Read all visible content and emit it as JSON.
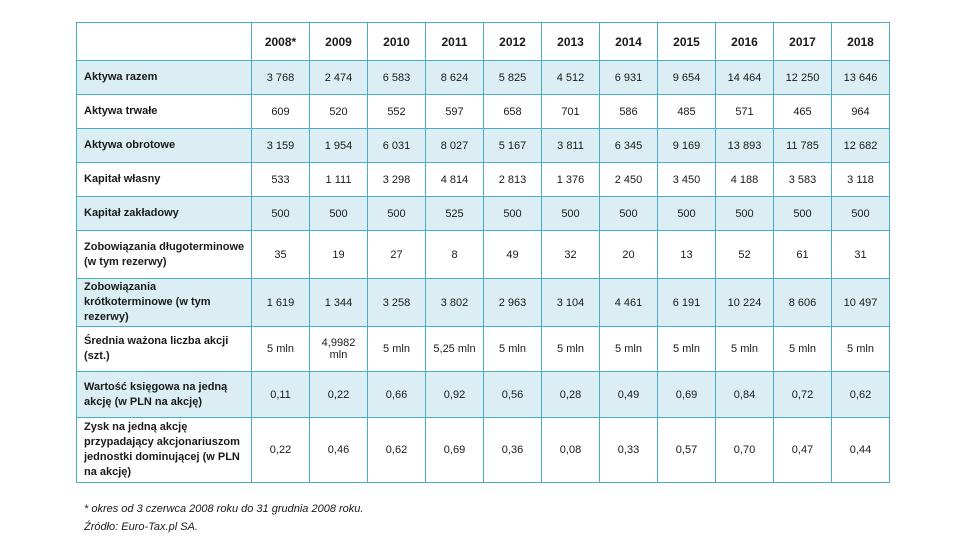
{
  "years": [
    "2008*",
    "2009",
    "2010",
    "2011",
    "2012",
    "2013",
    "2014",
    "2015",
    "2016",
    "2017",
    "2018"
  ],
  "rows": [
    {
      "label": "Aktywa razem",
      "values": [
        "3 768",
        "2 474",
        "6 583",
        "8 624",
        "5 825",
        "4 512",
        "6 931",
        "9 654",
        "14 464",
        "12 250",
        "13 646"
      ]
    },
    {
      "label": "Aktywa trwałe",
      "values": [
        "609",
        "520",
        "552",
        "597",
        "658",
        "701",
        "586",
        "485",
        "571",
        "465",
        "964"
      ]
    },
    {
      "label": "Aktywa obrotowe",
      "values": [
        "3 159",
        "1 954",
        "6 031",
        "8 027",
        "5 167",
        "3 811",
        "6 345",
        "9 169",
        "13 893",
        "11 785",
        "12 682"
      ]
    },
    {
      "label": "Kapitał własny",
      "values": [
        "533",
        "1 111",
        "3 298",
        "4 814",
        "2 813",
        "1 376",
        "2 450",
        "3 450",
        "4 188",
        "3 583",
        "3 118"
      ]
    },
    {
      "label": "Kapitał zakładowy",
      "values": [
        "500",
        "500",
        "500",
        "525",
        "500",
        "500",
        "500",
        "500",
        "500",
        "500",
        "500"
      ]
    },
    {
      "label": "Zobowiązania długoterminowe (w tym rezerwy)",
      "values": [
        "35",
        "19",
        "27",
        "8",
        "49",
        "32",
        "20",
        "13",
        "52",
        "61",
        "31"
      ]
    },
    {
      "label": "Zobowiązania krótkoterminowe (w tym rezerwy)",
      "values": [
        "1 619",
        "1 344",
        "3 258",
        "3 802",
        "2 963",
        "3 104",
        "4 461",
        "6 191",
        "10 224",
        "8 606",
        "10 497"
      ]
    },
    {
      "label": "Średnia ważona liczba akcji (szt.)",
      "values": [
        "5 mln",
        "4,9982 mln",
        "5 mln",
        "5,25 mln",
        "5 mln",
        "5 mln",
        "5 mln",
        "5 mln",
        "5 mln",
        "5 mln",
        "5 mln"
      ]
    },
    {
      "label": "Wartość księgowa na jedną akcję (w PLN na akcję)",
      "values": [
        "0,11",
        "0,22",
        "0,66",
        "0,92",
        "0,56",
        "0,28",
        "0,49",
        "0,69",
        "0,84",
        "0,72",
        "0,62"
      ]
    },
    {
      "label": "Zysk na jedną akcję przypadający akcjonariuszom jednostki dominującej (w PLN na akcję)",
      "values": [
        "0,22",
        "0,46",
        "0,62",
        "0,69",
        "0,36",
        "0,08",
        "0,33",
        "0,57",
        "0,70",
        "0,47",
        "0,44"
      ]
    }
  ],
  "footnotes": {
    "note": "* okres od 3 czerwca 2008 roku do 31 grudnia 2008 roku.",
    "source": "Źródło: Euro-Tax.pl SA."
  },
  "colors": {
    "border": "#4bacc6",
    "shade": "#daeef3"
  }
}
